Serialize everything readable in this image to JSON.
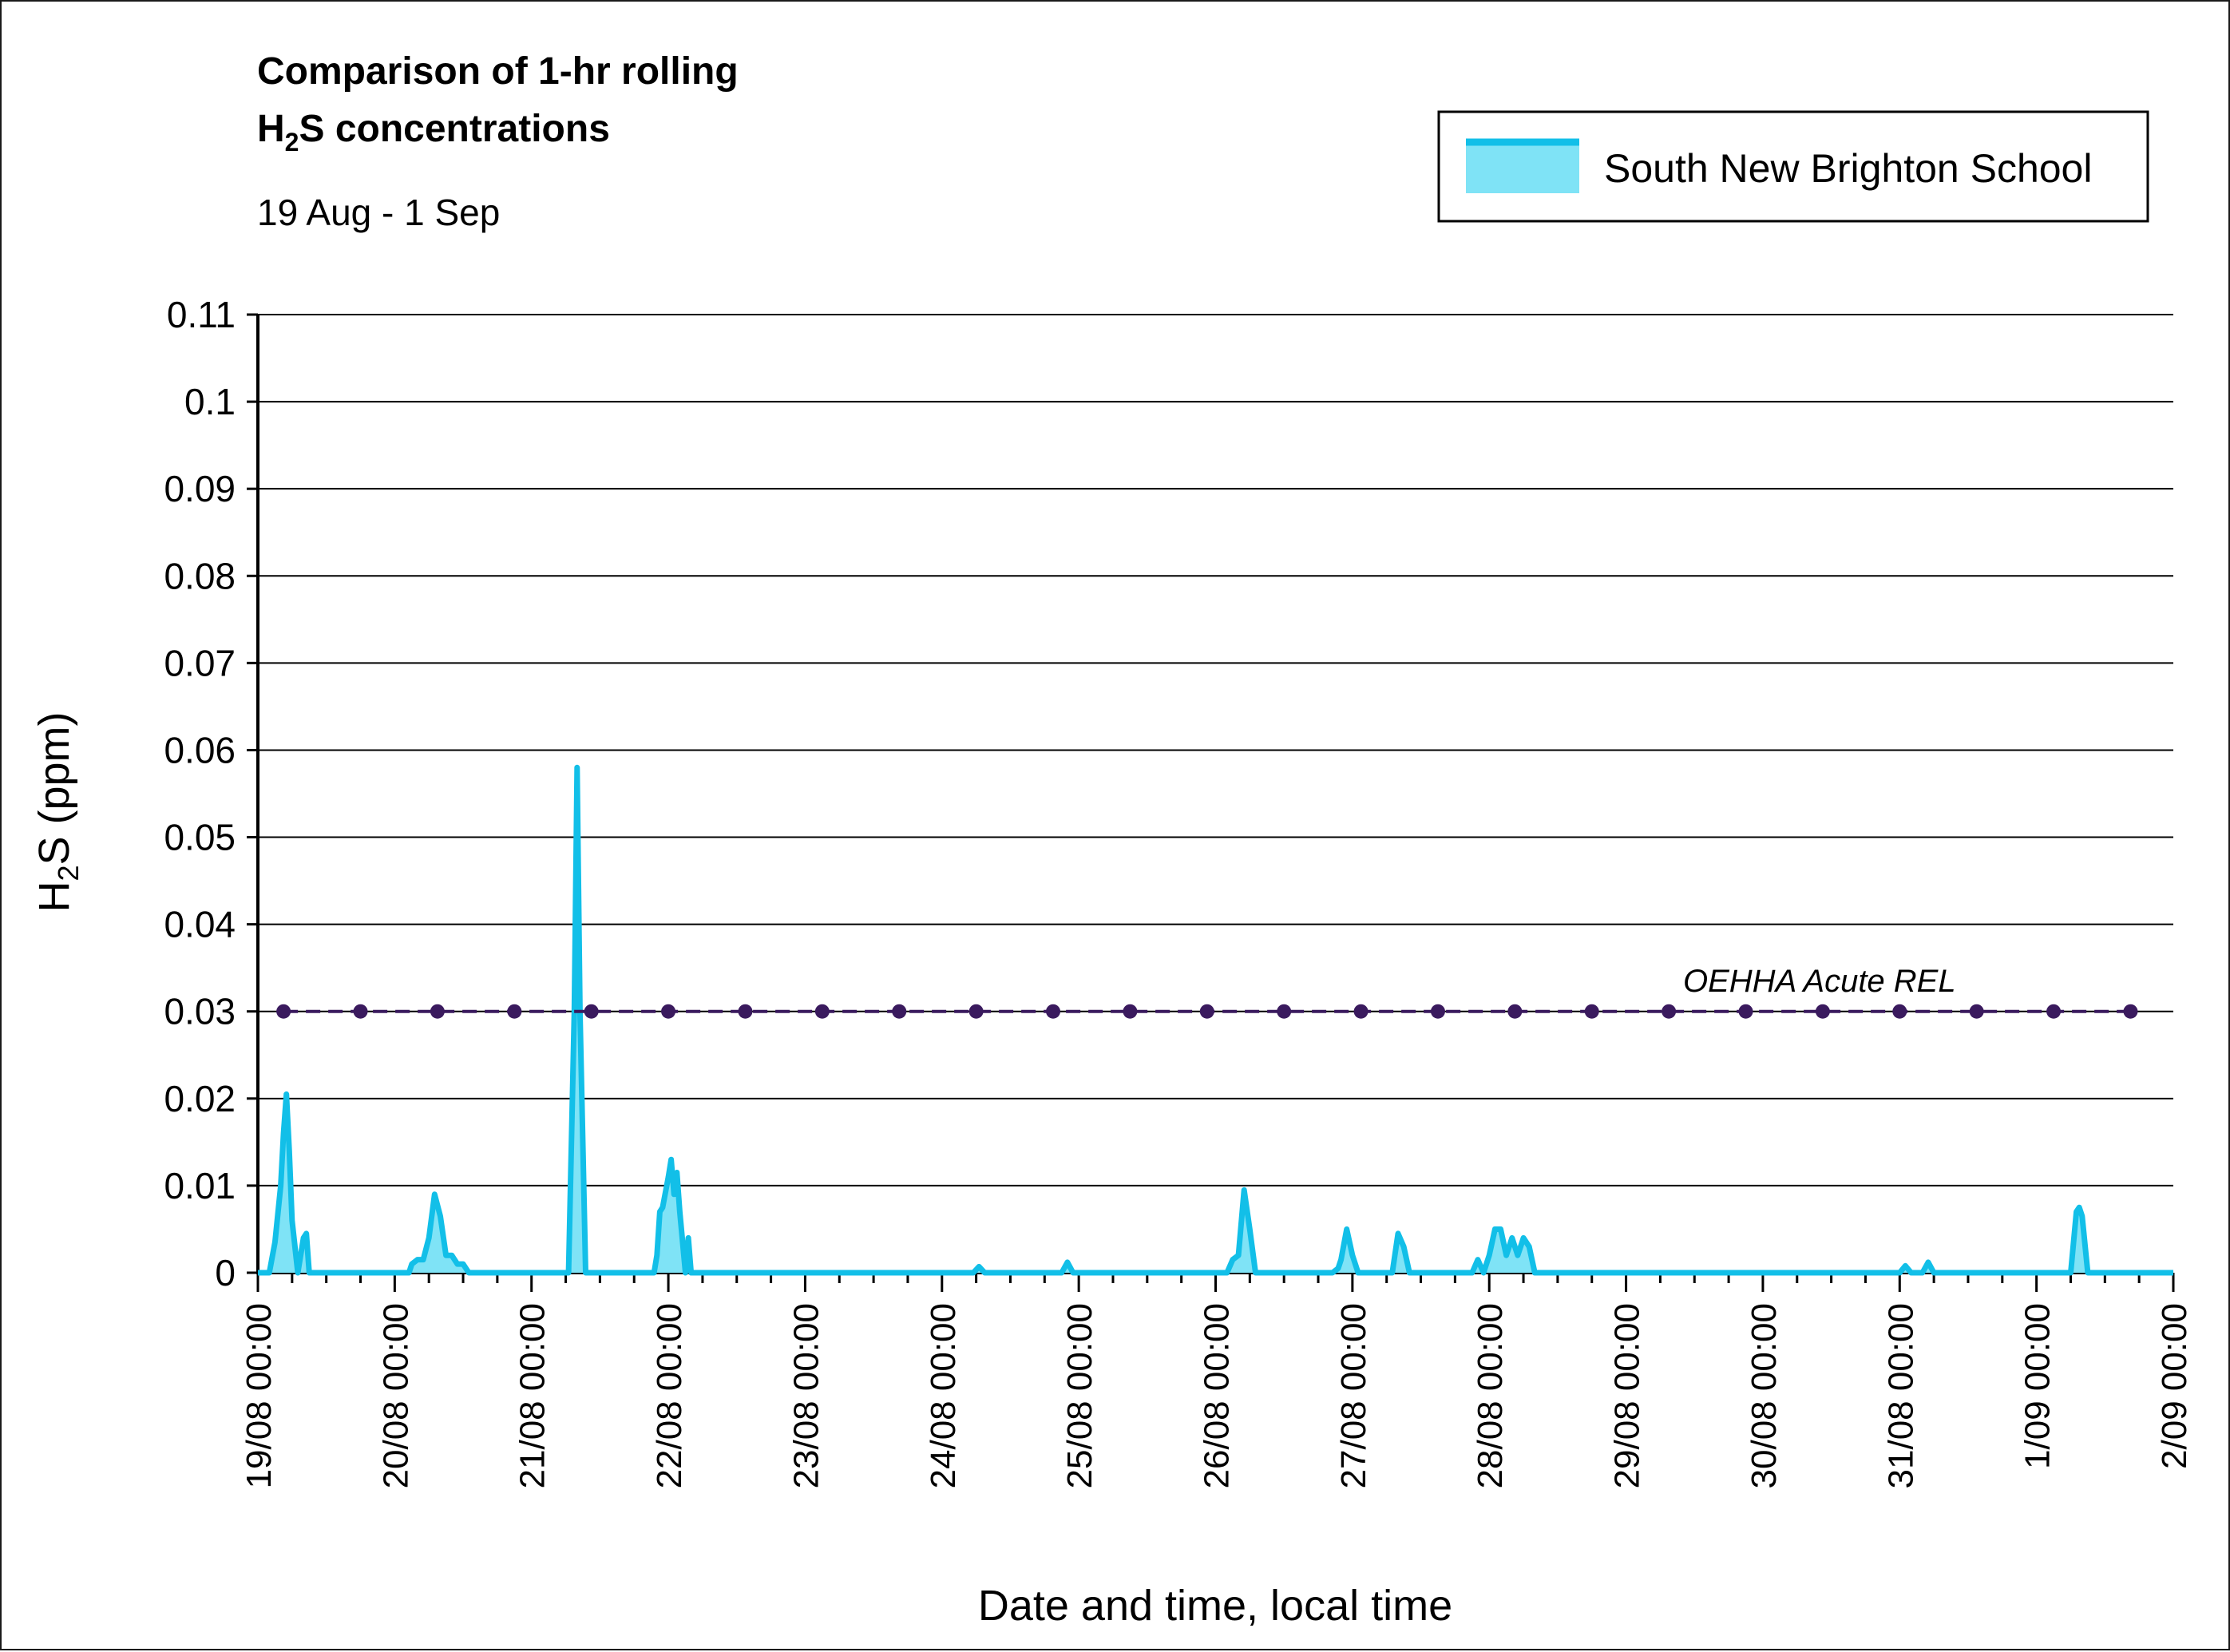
{
  "chart_data": {
    "type": "area",
    "title_line1": "Comparison of 1-hr rolling",
    "title_line2_prefix": "H",
    "title_line2_sub": "2",
    "title_line2_suffix": "S concentrations",
    "subtitle": "19 Aug - 1 Sep",
    "ylabel_prefix": "H",
    "ylabel_sub": "2",
    "ylabel_suffix": "S (ppm)",
    "xlabel": "Date and time, local time",
    "ylim": [
      0,
      0.11
    ],
    "yticks": [
      "0",
      "0.01",
      "0.02",
      "0.03",
      "0.04",
      "0.05",
      "0.06",
      "0.07",
      "0.08",
      "0.09",
      "0.1",
      "0.11"
    ],
    "xticks": [
      "19/08 00:00",
      "20/08 00:00",
      "21/08 00:00",
      "22/08 00:00",
      "23/08 00:00",
      "24/08 00:00",
      "25/08 00:00",
      "26/08 00:00",
      "27/08 00:00",
      "28/08 00:00",
      "29/08 00:00",
      "30/08 00:00",
      "31/08 00:00",
      "1/09 00:00",
      "2/09 00:00"
    ],
    "xlim": [
      "19/08 00:00",
      "2/09 00:00"
    ],
    "grid": "horizontal",
    "legend_position": "top-right",
    "series": [
      {
        "name": "South New Brighton School",
        "color": "#12bfe8",
        "fill": "#7fe3f6",
        "x": [
          "19/08 00:00",
          "19/08 02:00",
          "19/08 03:00",
          "19/08 04:00",
          "19/08 04:30",
          "19/08 05:00",
          "19/08 05:30",
          "19/08 06:00",
          "19/08 07:00",
          "19/08 08:00",
          "19/08 08:30",
          "19/08 09:00",
          "19/08 10:00",
          "19/08 11:00",
          "19/08 12:00",
          "20/08 02:30",
          "20/08 03:00",
          "20/08 04:00",
          "20/08 05:00",
          "20/08 06:00",
          "20/08 07:00",
          "20/08 08:00",
          "20/08 09:00",
          "20/08 10:00",
          "20/08 11:00",
          "20/08 12:00",
          "20/08 13:00",
          "20/08 14:00",
          "21/08 06:30",
          "21/08 07:30",
          "21/08 08:00",
          "21/08 08:30",
          "21/08 09:30",
          "21/08 21:30",
          "21/08 22:00",
          "21/08 22:30",
          "21/08 23:00",
          "22/08 00:00",
          "22/08 00:30",
          "22/08 01:00",
          "22/08 01:30",
          "22/08 02:00",
          "22/08 03:00",
          "22/08 03:30",
          "22/08 04:00",
          "22/08 05:00",
          "24/08 05:30",
          "24/08 06:30",
          "24/08 07:30",
          "24/08 21:00",
          "24/08 22:00",
          "24/08 23:00",
          "26/08 02:00",
          "26/08 03:00",
          "26/08 04:00",
          "26/08 05:00",
          "26/08 06:00",
          "26/08 07:00",
          "26/08 08:00",
          "26/08 20:30",
          "26/08 21:30",
          "26/08 22:00",
          "26/08 23:00",
          "27/08 00:00",
          "27/08 01:00",
          "27/08 07:00",
          "27/08 08:00",
          "27/08 09:00",
          "27/08 10:00",
          "27/08 21:00",
          "27/08 22:00",
          "27/08 23:00",
          "28/08 00:00",
          "28/08 01:00",
          "28/08 02:00",
          "28/08 03:00",
          "28/08 04:00",
          "28/08 05:00",
          "28/08 06:00",
          "28/08 07:00",
          "28/08 08:00",
          "28/08 09:00",
          "31/08 00:00",
          "31/08 01:00",
          "31/08 02:00",
          "31/08 04:00",
          "31/08 05:00",
          "31/08 06:00",
          "1/09 06:00",
          "1/09 07:00",
          "1/09 07:30",
          "1/09 08:00",
          "1/09 09:00",
          "2/09 00:00"
        ],
        "y": [
          0,
          0,
          0.0035,
          0.01,
          0.016,
          0.0205,
          0.014,
          0.006,
          0,
          0.004,
          0.0045,
          0,
          0,
          0,
          0,
          0,
          0.001,
          0.0015,
          0.0015,
          0.004,
          0.009,
          0.0065,
          0.002,
          0.002,
          0.001,
          0.001,
          0,
          0,
          0,
          0.03,
          0.058,
          0.03,
          0,
          0,
          0.002,
          0.007,
          0.0075,
          0.011,
          0.013,
          0.009,
          0.0115,
          0.007,
          0,
          0.004,
          0,
          0,
          0,
          0.0007,
          0,
          0,
          0.0012,
          0,
          0,
          0.0015,
          0.002,
          0.0095,
          0.005,
          0,
          0,
          0,
          0.0005,
          0.0015,
          0.005,
          0.002,
          0,
          0,
          0.0045,
          0.003,
          0,
          0,
          0.0015,
          0,
          0.002,
          0.005,
          0.005,
          0.002,
          0.004,
          0.002,
          0.004,
          0.003,
          0,
          0,
          0,
          0.0008,
          0,
          0,
          0.0012,
          0,
          0,
          0.007,
          0.0075,
          0.0065,
          0,
          0
        ]
      },
      {
        "name": "OEHHA Acute REL",
        "color": "#3a1a5e",
        "y_constant": 0.03
      }
    ],
    "annotations": [
      "OEHHA Acute REL"
    ]
  }
}
